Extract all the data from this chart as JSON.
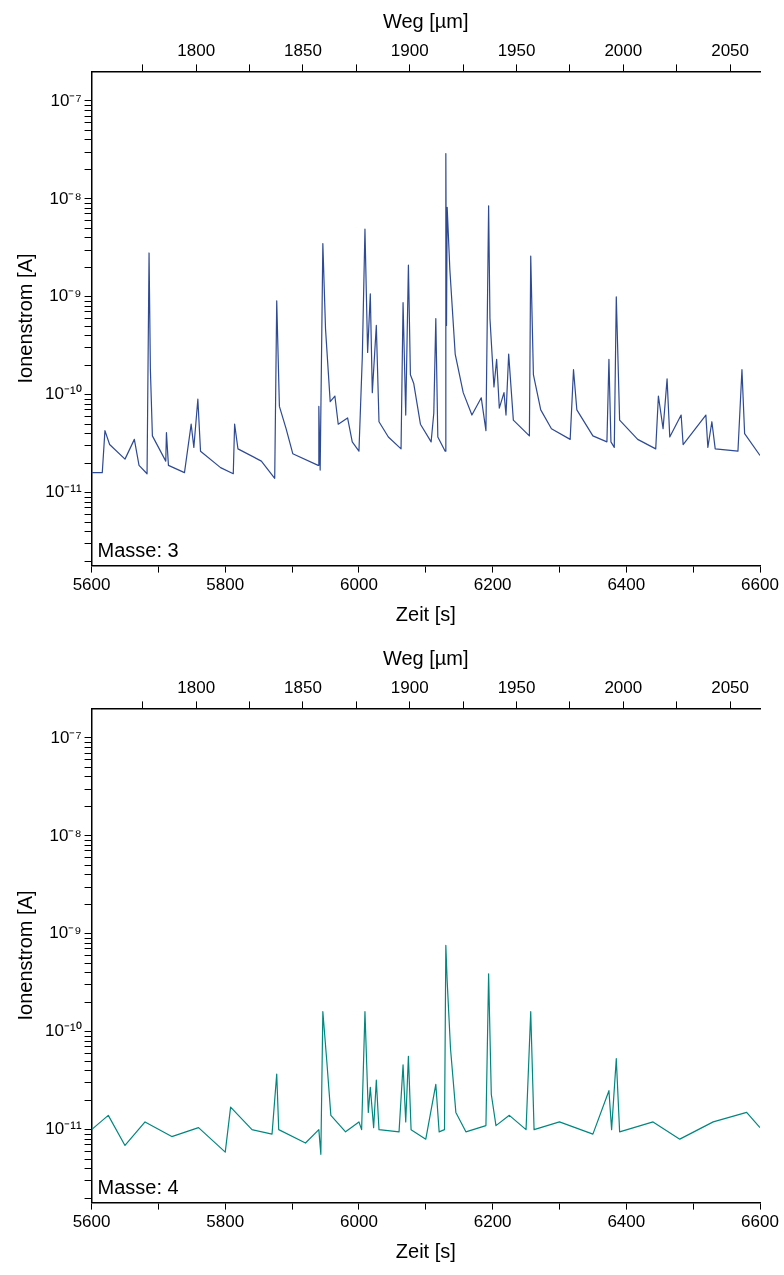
{
  "chart_data": [
    {
      "type": "line",
      "xlabel": "Zeit [s]",
      "ylabel": "Ionenstrom [A]",
      "x2label": "Weg [µm]",
      "log": "y",
      "marker": "none",
      "line_style": "solid",
      "annotations": [
        "Masse: 3"
      ],
      "xlim": [
        5600,
        6600
      ],
      "xticks": [
        5600,
        {
          "value": 5700,
          "label": null
        },
        5800,
        {
          "value": 5900,
          "label": null
        },
        6000,
        {
          "value": 6100,
          "label": null
        },
        6200,
        {
          "value": 6300,
          "label": null
        },
        6400,
        {
          "value": 6500,
          "label": null
        },
        6600
      ],
      "x2lim": [
        1751,
        2064
      ],
      "x2ticks": [
        {
          "value": 1775,
          "label": null
        },
        1800,
        {
          "value": 1825,
          "label": null
        },
        1850,
        {
          "value": 1875,
          "label": null
        },
        1900,
        {
          "value": 1925,
          "label": null
        },
        1950,
        {
          "value": 1975,
          "label": null
        },
        2000,
        {
          "value": 2025,
          "label": null
        },
        2050
      ],
      "ylim": [
        1.8e-12,
        2e-07
      ],
      "yticks": [
        {
          "value": 2e-12,
          "label": null
        },
        {
          "value": 3e-12,
          "label": null
        },
        {
          "value": 4e-12,
          "label": null
        },
        {
          "value": 5e-12,
          "label": null
        },
        {
          "value": 6e-12,
          "label": null
        },
        {
          "value": 7e-12,
          "label": null
        },
        {
          "value": 8e-12,
          "label": null
        },
        {
          "value": 9e-12,
          "label": null
        },
        {
          "value": 1e-11,
          "label": "10⁻¹¹"
        },
        {
          "value": 2e-11,
          "label": null
        },
        {
          "value": 3e-11,
          "label": null
        },
        {
          "value": 4e-11,
          "label": null
        },
        {
          "value": 5e-11,
          "label": null
        },
        {
          "value": 6e-11,
          "label": null
        },
        {
          "value": 7e-11,
          "label": null
        },
        {
          "value": 8e-11,
          "label": null
        },
        {
          "value": 9e-11,
          "label": null
        },
        {
          "value": 1e-10,
          "label": "10⁻¹⁰"
        },
        {
          "value": 2e-10,
          "label": null
        },
        {
          "value": 3e-10,
          "label": null
        },
        {
          "value": 4e-10,
          "label": null
        },
        {
          "value": 5e-10,
          "label": null
        },
        {
          "value": 6e-10,
          "label": null
        },
        {
          "value": 7e-10,
          "label": null
        },
        {
          "value": 8e-10,
          "label": null
        },
        {
          "value": 9e-10,
          "label": null
        },
        {
          "value": 1e-09,
          "label": "10⁻⁹"
        },
        {
          "value": 2e-09,
          "label": null
        },
        {
          "value": 3e-09,
          "label": null
        },
        {
          "value": 4e-09,
          "label": null
        },
        {
          "value": 5e-09,
          "label": null
        },
        {
          "value": 6e-09,
          "label": null
        },
        {
          "value": 7e-09,
          "label": null
        },
        {
          "value": 8e-09,
          "label": null
        },
        {
          "value": 9e-09,
          "label": null
        },
        {
          "value": 1e-08,
          "label": "10⁻⁸"
        },
        {
          "value": 2e-08,
          "label": null
        },
        {
          "value": 3e-08,
          "label": null
        },
        {
          "value": 4e-08,
          "label": null
        },
        {
          "value": 5e-08,
          "label": null
        },
        {
          "value": 6e-08,
          "label": null
        },
        {
          "value": 7e-08,
          "label": null
        },
        {
          "value": 8e-08,
          "label": null
        },
        {
          "value": 9e-08,
          "label": null
        },
        {
          "value": 1e-07,
          "label": "10⁻⁷"
        }
      ],
      "x": [
        5600,
        5616,
        5620,
        5627,
        5650,
        5664,
        5671,
        5683,
        5686,
        5688,
        5691,
        5711,
        5712,
        5715,
        5739,
        5749,
        5753,
        5759,
        5763,
        5793,
        5812,
        5814,
        5819,
        5854,
        5874,
        5877,
        5881,
        5891,
        5901,
        5939,
        5940,
        5942,
        5946,
        5950,
        5957,
        5964,
        5969,
        5983,
        5990,
        6000,
        6005,
        6009,
        6013,
        6017,
        6020,
        6026,
        6030,
        6044,
        6063,
        6066,
        6070,
        6074,
        6077,
        6082,
        6092,
        6108,
        6112,
        6115,
        6118,
        6129,
        6130,
        6131,
        6132,
        6136,
        6144,
        6156,
        6169,
        6183,
        6190,
        6194,
        6196,
        6202,
        6206,
        6210,
        6217,
        6220,
        6224,
        6231,
        6255,
        6257,
        6261,
        6272,
        6288,
        6316,
        6321,
        6326,
        6350,
        6371,
        6374,
        6377,
        6382,
        6385,
        6390,
        6417,
        6444,
        6448,
        6455,
        6461,
        6465,
        6482,
        6485,
        6519,
        6522,
        6528,
        6533,
        6567,
        6573,
        6577,
        6600
      ],
      "series": [
        {
          "color": "#2e4a94",
          "values": [
            1.6e-11,
            1.6e-11,
            4.3e-11,
            3.1e-11,
            2.2e-11,
            3.5e-11,
            1.9e-11,
            1.56e-11,
            2.8e-09,
            1.8e-10,
            3.8e-11,
            2.1e-11,
            4.1e-11,
            1.9e-11,
            1.6e-11,
            5e-11,
            2.9e-11,
            9e-11,
            2.65e-11,
            1.8e-11,
            1.56e-11,
            5e-11,
            2.8e-11,
            2.1e-11,
            1.4e-11,
            9.1e-10,
            7.6e-11,
            4.5e-11,
            2.5e-11,
            1.9e-11,
            7.6e-11,
            1.7e-11,
            3.5e-09,
            4.7e-10,
            8.5e-11,
            9.7e-11,
            5e-11,
            5.8e-11,
            3.3e-11,
            2.65e-11,
            2.4e-10,
            4.9e-09,
            2.7e-10,
            1.07e-09,
            1.05e-10,
            5.1e-10,
            5.3e-11,
            3.7e-11,
            2.8e-11,
            8.7e-10,
            6.2e-11,
            2.1e-09,
            1.6e-10,
            1.3e-10,
            5e-11,
            3.3e-11,
            6.5e-11,
            6e-10,
            3.7e-11,
            2.65e-11,
            2.9e-08,
            5.1e-10,
            8.2e-09,
            1.9e-09,
            2.6e-10,
            1.05e-10,
            6.2e-11,
            9.3e-11,
            4.3e-11,
            8.5e-09,
            6e-10,
            1.2e-10,
            2.3e-10,
            7.3e-11,
            1.05e-10,
            6.2e-11,
            2.6e-10,
            5.5e-11,
            3.8e-11,
            2.6e-09,
            1.6e-10,
            7e-11,
            4.5e-11,
            3.5e-11,
            1.8e-10,
            7e-11,
            3.8e-11,
            3.3e-11,
            2.3e-10,
            3.3e-11,
            2.9e-11,
            1e-09,
            5.5e-11,
            3.5e-11,
            2.8e-11,
            9.7e-11,
            4.5e-11,
            1.45e-10,
            3.7e-11,
            6.2e-11,
            3.1e-11,
            6.2e-11,
            2.9e-11,
            5.3e-11,
            2.8e-11,
            2.65e-11,
            1.8e-10,
            4e-11,
            2.4e-11
          ]
        }
      ]
    },
    {
      "type": "line",
      "xlabel": "Zeit [s]",
      "ylabel": "Ionenstrom [A]",
      "x2label": "Weg [µm]",
      "log": "y",
      "marker": "none",
      "line_style": "solid",
      "annotations": [
        "Masse: 4"
      ],
      "xlim": [
        5600,
        6600
      ],
      "xticks": [
        5600,
        {
          "value": 5700,
          "label": null
        },
        5800,
        {
          "value": 5900,
          "label": null
        },
        6000,
        {
          "value": 6100,
          "label": null
        },
        6200,
        {
          "value": 6300,
          "label": null
        },
        6400,
        {
          "value": 6500,
          "label": null
        },
        6600
      ],
      "x2lim": [
        1751,
        2064
      ],
      "x2ticks": [
        {
          "value": 1775,
          "label": null
        },
        1800,
        {
          "value": 1825,
          "label": null
        },
        1850,
        {
          "value": 1875,
          "label": null
        },
        1900,
        {
          "value": 1925,
          "label": null
        },
        1950,
        {
          "value": 1975,
          "label": null
        },
        2000,
        {
          "value": 2025,
          "label": null
        },
        2050
      ],
      "ylim": [
        1.8e-12,
        2e-07
      ],
      "yticks": [
        {
          "value": 2e-12,
          "label": null
        },
        {
          "value": 3e-12,
          "label": null
        },
        {
          "value": 4e-12,
          "label": null
        },
        {
          "value": 5e-12,
          "label": null
        },
        {
          "value": 6e-12,
          "label": null
        },
        {
          "value": 7e-12,
          "label": null
        },
        {
          "value": 8e-12,
          "label": null
        },
        {
          "value": 9e-12,
          "label": null
        },
        {
          "value": 1e-11,
          "label": "10⁻¹¹"
        },
        {
          "value": 2e-11,
          "label": null
        },
        {
          "value": 3e-11,
          "label": null
        },
        {
          "value": 4e-11,
          "label": null
        },
        {
          "value": 5e-11,
          "label": null
        },
        {
          "value": 6e-11,
          "label": null
        },
        {
          "value": 7e-11,
          "label": null
        },
        {
          "value": 8e-11,
          "label": null
        },
        {
          "value": 9e-11,
          "label": null
        },
        {
          "value": 1e-10,
          "label": "10⁻¹⁰"
        },
        {
          "value": 2e-10,
          "label": null
        },
        {
          "value": 3e-10,
          "label": null
        },
        {
          "value": 4e-10,
          "label": null
        },
        {
          "value": 5e-10,
          "label": null
        },
        {
          "value": 6e-10,
          "label": null
        },
        {
          "value": 7e-10,
          "label": null
        },
        {
          "value": 8e-10,
          "label": null
        },
        {
          "value": 9e-10,
          "label": null
        },
        {
          "value": 1e-09,
          "label": "10⁻⁹"
        },
        {
          "value": 2e-09,
          "label": null
        },
        {
          "value": 3e-09,
          "label": null
        },
        {
          "value": 4e-09,
          "label": null
        },
        {
          "value": 5e-09,
          "label": null
        },
        {
          "value": 6e-09,
          "label": null
        },
        {
          "value": 7e-09,
          "label": null
        },
        {
          "value": 8e-09,
          "label": null
        },
        {
          "value": 9e-09,
          "label": null
        },
        {
          "value": 1e-08,
          "label": "10⁻⁸"
        },
        {
          "value": 2e-08,
          "label": null
        },
        {
          "value": 3e-08,
          "label": null
        },
        {
          "value": 4e-08,
          "label": null
        },
        {
          "value": 5e-08,
          "label": null
        },
        {
          "value": 6e-08,
          "label": null
        },
        {
          "value": 7e-08,
          "label": null
        },
        {
          "value": 8e-08,
          "label": null
        },
        {
          "value": 9e-08,
          "label": null
        },
        {
          "value": 1e-07,
          "label": "10⁻⁷"
        }
      ],
      "x": [
        5600,
        5625,
        5650,
        5680,
        5720,
        5760,
        5800,
        5808,
        5840,
        5870,
        5877,
        5880,
        5920,
        5940,
        5943,
        5946,
        5952,
        5958,
        5980,
        6000,
        6004,
        6009,
        6014,
        6017,
        6022,
        6026,
        6030,
        6060,
        6066,
        6070,
        6074,
        6078,
        6100,
        6115,
        6120,
        6128,
        6130,
        6132,
        6137,
        6145,
        6160,
        6190,
        6194,
        6198,
        6205,
        6225,
        6250,
        6257,
        6262,
        6300,
        6350,
        6374,
        6378,
        6385,
        6390,
        6440,
        6480,
        6530,
        6580,
        6600
      ],
      "series": [
        {
          "color": "#00877f",
          "values": [
            1e-11,
            1.4e-11,
            6.9e-12,
            1.2e-11,
            8.5e-12,
            1.05e-11,
            5.9e-12,
            1.7e-11,
            1e-11,
            9e-12,
            3.7e-11,
            1e-11,
            7.3e-12,
            1e-11,
            5.6e-12,
            1.6e-10,
            4.9e-11,
            1.4e-11,
            9.5e-12,
            1.2e-11,
            1e-11,
            1.6e-10,
            1.5e-11,
            2.7e-11,
            1.05e-11,
            3.2e-11,
            1e-11,
            9.5e-12,
            4.6e-11,
            1.2e-11,
            5.6e-11,
            1e-11,
            8e-12,
            2.9e-11,
            9.5e-12,
            1e-11,
            7.6e-10,
            3.3e-10,
            6.7e-11,
            1.5e-11,
            9.5e-12,
            1.1e-11,
            3.9e-10,
            2.3e-11,
            1.1e-11,
            1.4e-11,
            1e-11,
            1.6e-10,
            1e-11,
            1.2e-11,
            9e-12,
            2.5e-11,
            1e-11,
            5.3e-11,
            9.5e-12,
            1.2e-11,
            8e-12,
            1.2e-11,
            1.5e-11,
            1.05e-11
          ]
        }
      ]
    }
  ]
}
